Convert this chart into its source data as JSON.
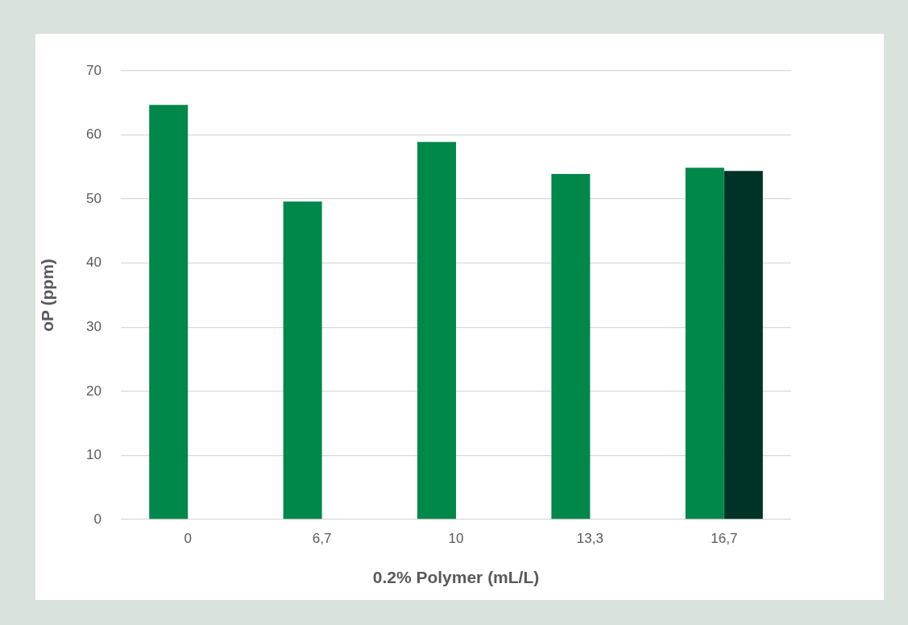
{
  "chart_data": {
    "type": "bar",
    "xlabel": "0.2% Polymer (mL/L)",
    "ylabel": "oP (ppm)",
    "categories": [
      "0",
      "6,7",
      "10",
      "13,3",
      "16,7"
    ],
    "series": [
      {
        "color": "#00874a",
        "values": [
          64.7,
          49.6,
          58.9,
          53.9,
          54.9
        ]
      },
      {
        "color": "#003327",
        "values": [
          null,
          null,
          null,
          null,
          54.4
        ]
      }
    ],
    "ylim": [
      0,
      70
    ],
    "yticks": [
      0,
      10,
      20,
      30,
      40,
      50,
      60,
      70
    ],
    "grid": "y",
    "legend": false
  }
}
